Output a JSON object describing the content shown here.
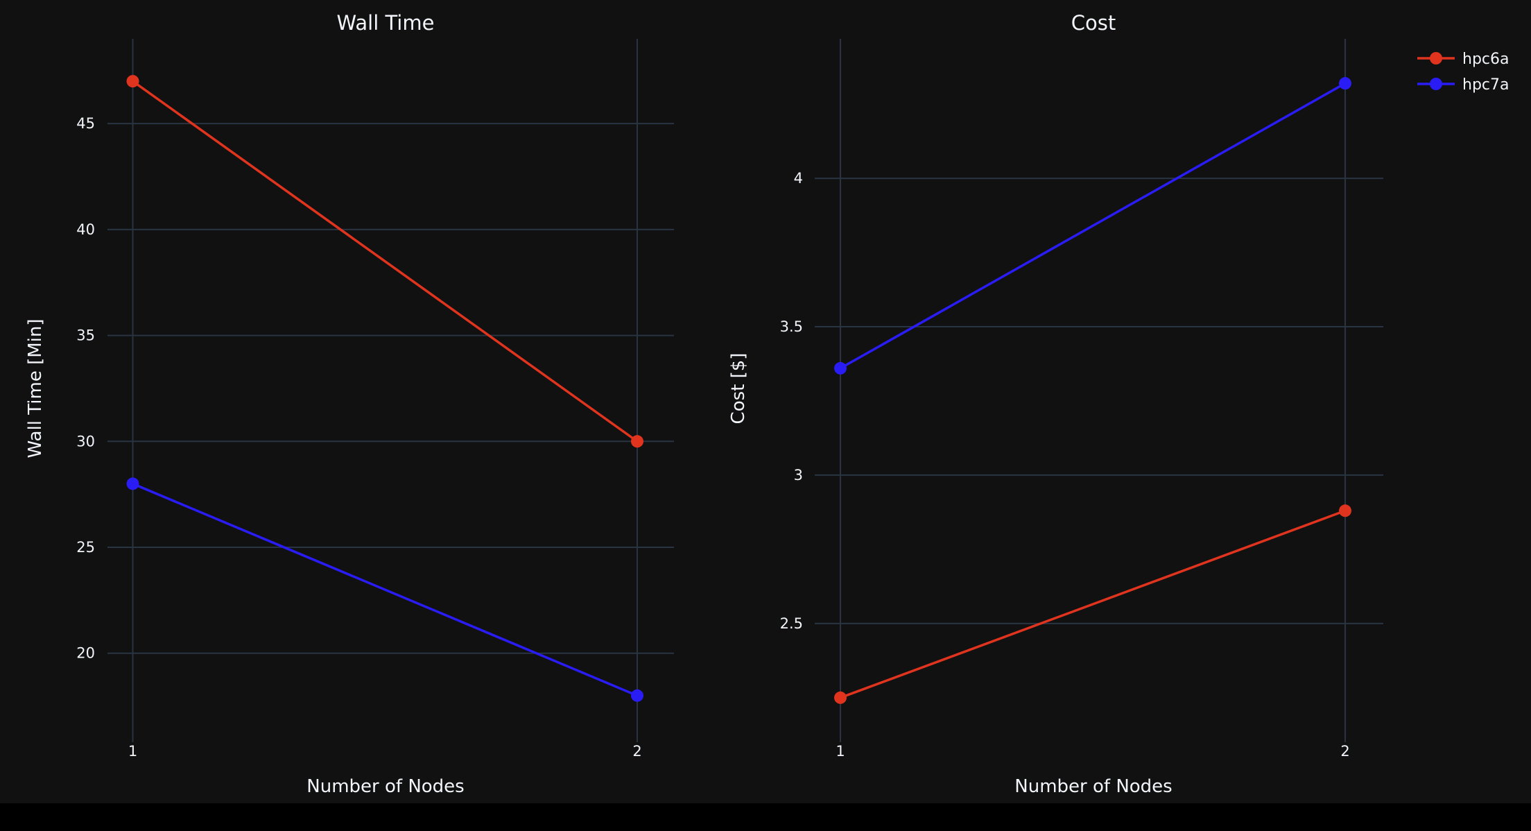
{
  "legend": [
    {
      "name": "hpc6a",
      "color": "#e0341e"
    },
    {
      "name": "hpc7a",
      "color": "#2a1cf5"
    }
  ],
  "chart_data": [
    {
      "type": "line",
      "title": "Wall Time",
      "xlabel": "Number of Nodes",
      "ylabel": "Wall Time [Min]",
      "x": [
        1,
        2
      ],
      "xticks": [
        "1",
        "2"
      ],
      "yticks": [
        20,
        25,
        30,
        35,
        40,
        45
      ],
      "ylim": [
        15.8,
        49
      ],
      "grid": true,
      "series": [
        {
          "name": "hpc6a",
          "values": [
            47,
            30
          ]
        },
        {
          "name": "hpc7a",
          "values": [
            28,
            18
          ]
        }
      ]
    },
    {
      "type": "line",
      "title": "Cost",
      "xlabel": "Number of Nodes",
      "ylabel": "Cost [$]",
      "x": [
        1,
        2
      ],
      "xticks": [
        "1",
        "2"
      ],
      "yticks": [
        2.5,
        3,
        3.5,
        4
      ],
      "ylim": [
        2.1,
        4.47
      ],
      "grid": true,
      "legend_position": "top-right",
      "series": [
        {
          "name": "hpc6a",
          "values": [
            2.25,
            2.88
          ]
        },
        {
          "name": "hpc7a",
          "values": [
            3.36,
            4.32
          ]
        }
      ]
    }
  ]
}
